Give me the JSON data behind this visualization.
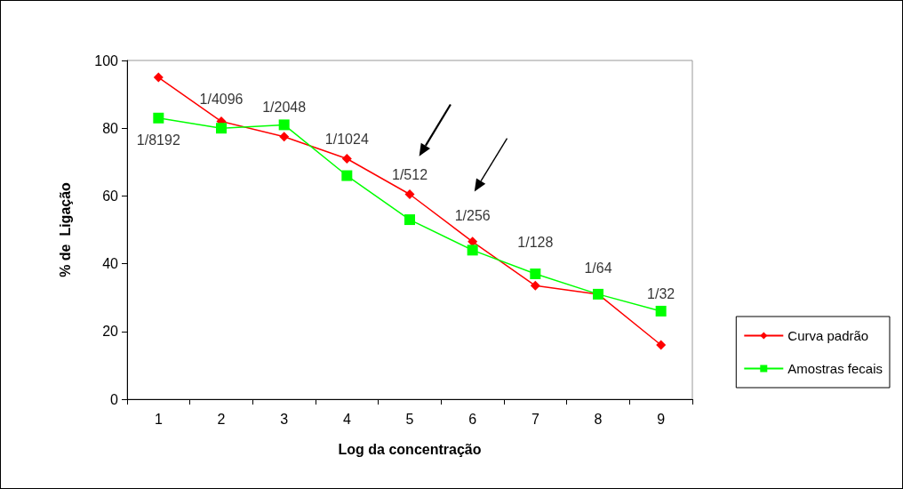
{
  "chart_data": {
    "type": "line",
    "xlabel": "Log da concentração",
    "ylabel": "% de  Ligação",
    "categories": [
      "1",
      "2",
      "3",
      "4",
      "5",
      "6",
      "7",
      "8",
      "9"
    ],
    "ylim": [
      0,
      100
    ],
    "yticks": [
      0,
      20,
      40,
      60,
      80,
      100
    ],
    "grid": false,
    "legend": "right",
    "series": [
      {
        "name": "Curva padrão",
        "color": "#ff0000",
        "marker": "diamond",
        "values": [
          95,
          82,
          77.5,
          71,
          60.5,
          46.5,
          33.5,
          31,
          16
        ]
      },
      {
        "name": "Amostras fecais",
        "color": "#00ff00",
        "marker": "square",
        "values": [
          83,
          80,
          81,
          66,
          53,
          44,
          37,
          31,
          26
        ]
      }
    ],
    "annotations": [
      {
        "text": "1/8192",
        "x": "1",
        "y": 83
      },
      {
        "text": "1/4096",
        "x": "2",
        "y": 82
      },
      {
        "text": "1/2048",
        "x": "3",
        "y": 81
      },
      {
        "text": "1/1024",
        "x": "4",
        "y": 71
      },
      {
        "text": "1/512",
        "x": "5",
        "y": 60.5
      },
      {
        "text": "1/256",
        "x": "6",
        "y": 46.5
      },
      {
        "text": "1/128",
        "x": "7",
        "y": 37
      },
      {
        "text": "1/64",
        "x": "8",
        "y": 31
      },
      {
        "text": "1/32",
        "x": "9",
        "y": 26
      }
    ]
  }
}
